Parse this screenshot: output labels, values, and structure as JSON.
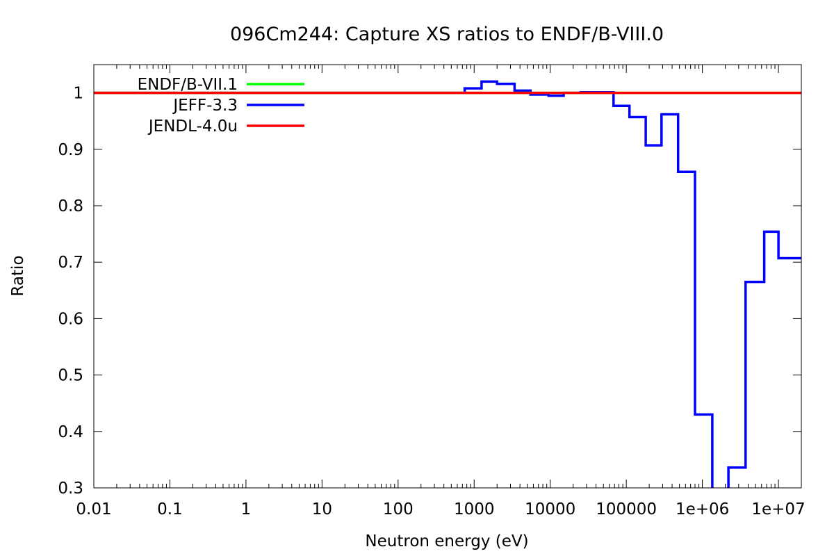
{
  "chart_data": {
    "type": "line",
    "title": "096Cm244: Capture XS ratios to ENDF/B-VIII.0",
    "xlabel": "Neutron energy (eV)",
    "ylabel": "Ratio",
    "x_scale": "log",
    "xlim": [
      0.01,
      20000000
    ],
    "ylim": [
      0.3,
      1.05
    ],
    "grid": false,
    "legend_position": "top-left",
    "x_ticks": [
      {
        "value": 0.01,
        "label": "0.01"
      },
      {
        "value": 0.1,
        "label": "0.1"
      },
      {
        "value": 1,
        "label": "1"
      },
      {
        "value": 10,
        "label": "10"
      },
      {
        "value": 100,
        "label": "100"
      },
      {
        "value": 1000,
        "label": "1000"
      },
      {
        "value": 10000,
        "label": "10000"
      },
      {
        "value": 100000,
        "label": "100000"
      },
      {
        "value": 1000000,
        "label": "1e+06"
      },
      {
        "value": 10000000,
        "label": "1e+07"
      }
    ],
    "y_ticks": [
      {
        "value": 1.0,
        "label": "1"
      },
      {
        "value": 0.9,
        "label": "0.9"
      },
      {
        "value": 0.8,
        "label": "0.8"
      },
      {
        "value": 0.7,
        "label": "0.7"
      },
      {
        "value": 0.6,
        "label": "0.6"
      },
      {
        "value": 0.5,
        "label": "0.5"
      },
      {
        "value": 0.4,
        "label": "0.4"
      },
      {
        "value": 0.3,
        "label": "0.3"
      }
    ],
    "series": [
      {
        "name": "ENDF/B-VII.1",
        "color": "#00ff00",
        "style": "line",
        "x": [
          0.01,
          20000000
        ],
        "y": [
          1.0,
          1.0
        ]
      },
      {
        "name": "JEFF-3.3",
        "color": "#0000ff",
        "style": "step",
        "x": [
          0.01,
          750,
          1250,
          2000,
          3400,
          5500,
          9500,
          15000,
          25000,
          40000,
          68000,
          110000,
          180000,
          290000,
          480000,
          800000,
          1350000,
          2200000,
          3700000,
          6500000,
          10000000,
          20000000
        ],
        "y": [
          1.0,
          1.008,
          1.02,
          1.016,
          1.004,
          0.997,
          0.995,
          1.0,
          1.001,
          1.001,
          0.977,
          0.957,
          0.907,
          0.962,
          0.86,
          0.43,
          0.25,
          0.336,
          0.665,
          0.754,
          0.707,
          0.707
        ]
      },
      {
        "name": "JENDL-4.0u",
        "color": "#ff0000",
        "style": "line",
        "x": [
          0.01,
          20000000
        ],
        "y": [
          1.0,
          1.0
        ]
      }
    ]
  }
}
